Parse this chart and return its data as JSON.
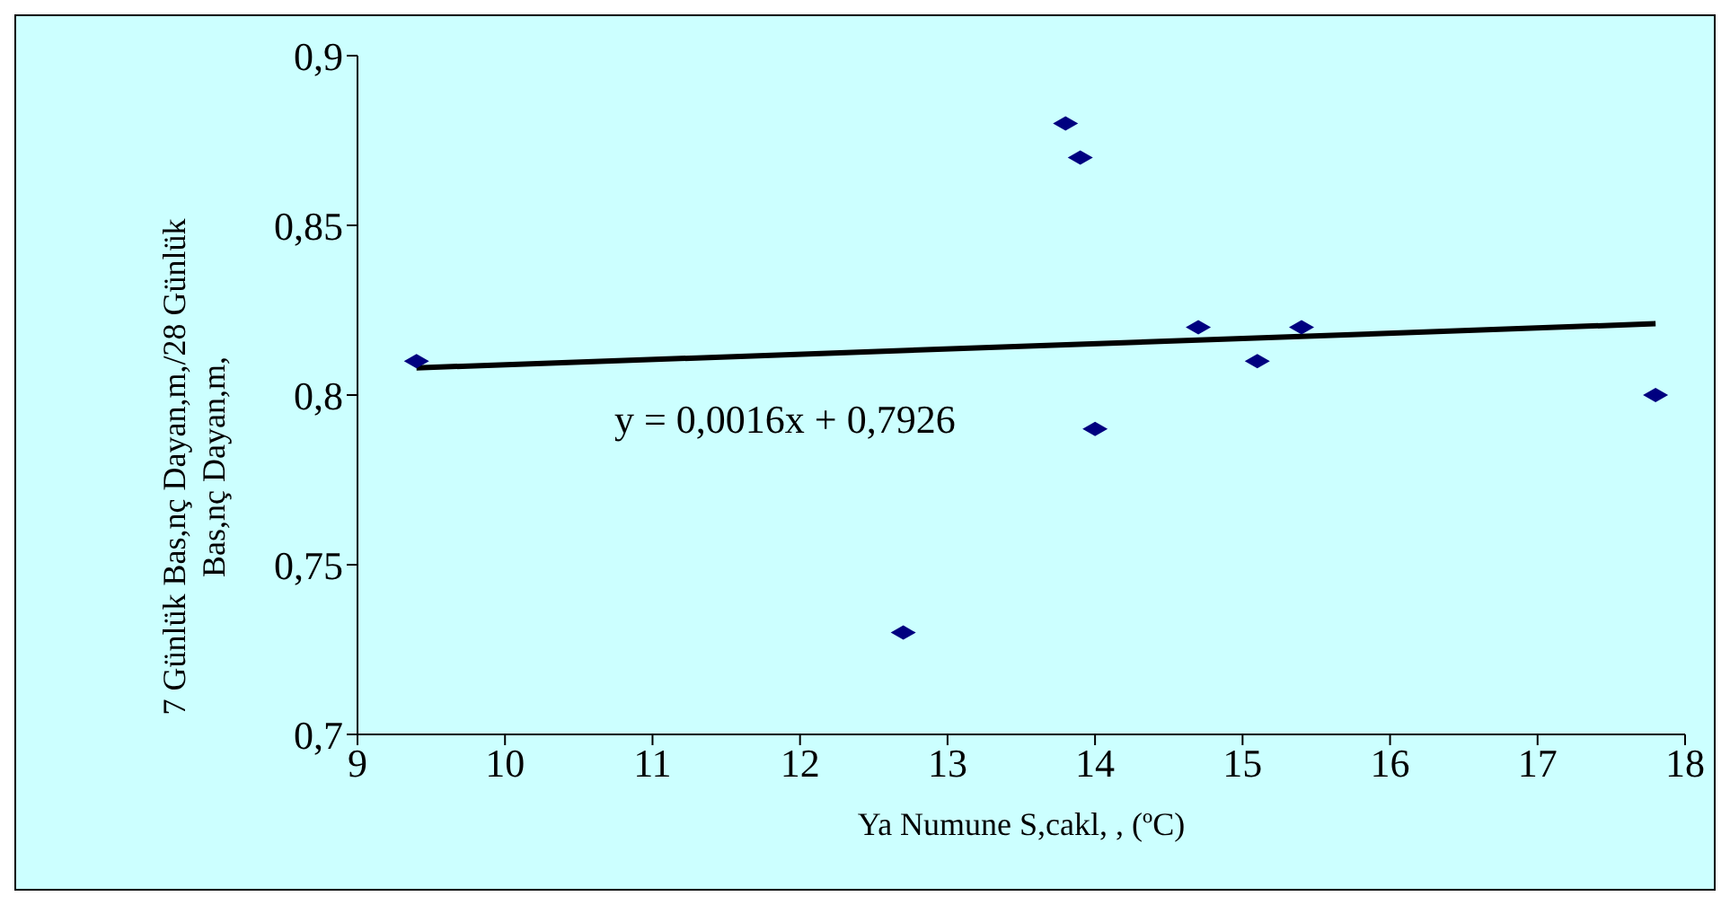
{
  "chart_data": {
    "type": "scatter",
    "xlabel": "Ya   Numune S,cakl,  , (ºC)",
    "ylabel": "7 Günlük Bas,nç Dayan,m,/28 Günlük\nBas,nç Dayan,m,",
    "series": [
      {
        "type": "scatter",
        "color": "#000080",
        "marker": "diamond",
        "x": [
          9.4,
          12.7,
          13.8,
          13.9,
          14.0,
          14.7,
          15.1,
          15.4,
          17.8
        ],
        "values": [
          0.81,
          0.73,
          0.88,
          0.87,
          0.79,
          0.82,
          0.81,
          0.82,
          0.8
        ]
      },
      {
        "type": "line",
        "color": "#000000",
        "marker": "none",
        "line_style": "solid",
        "x": [
          9.4,
          17.8
        ],
        "values": [
          0.808,
          0.821
        ]
      }
    ],
    "annotations": [
      "y = 0,0016x + 0,7926"
    ],
    "xlim": [
      9,
      18
    ],
    "xticks": [
      9,
      10,
      11,
      12,
      13,
      14,
      15,
      16,
      17,
      18
    ],
    "ylim": [
      0.7,
      0.9
    ],
    "yticks": [
      {
        "value": 0.7,
        "label": "0,7"
      },
      {
        "value": 0.75,
        "label": "0,75"
      },
      {
        "value": 0.8,
        "label": "0,8"
      },
      {
        "value": 0.85,
        "label": "0,85"
      },
      {
        "value": 0.9,
        "label": "0,9"
      }
    ],
    "grid": false,
    "legend": false
  }
}
